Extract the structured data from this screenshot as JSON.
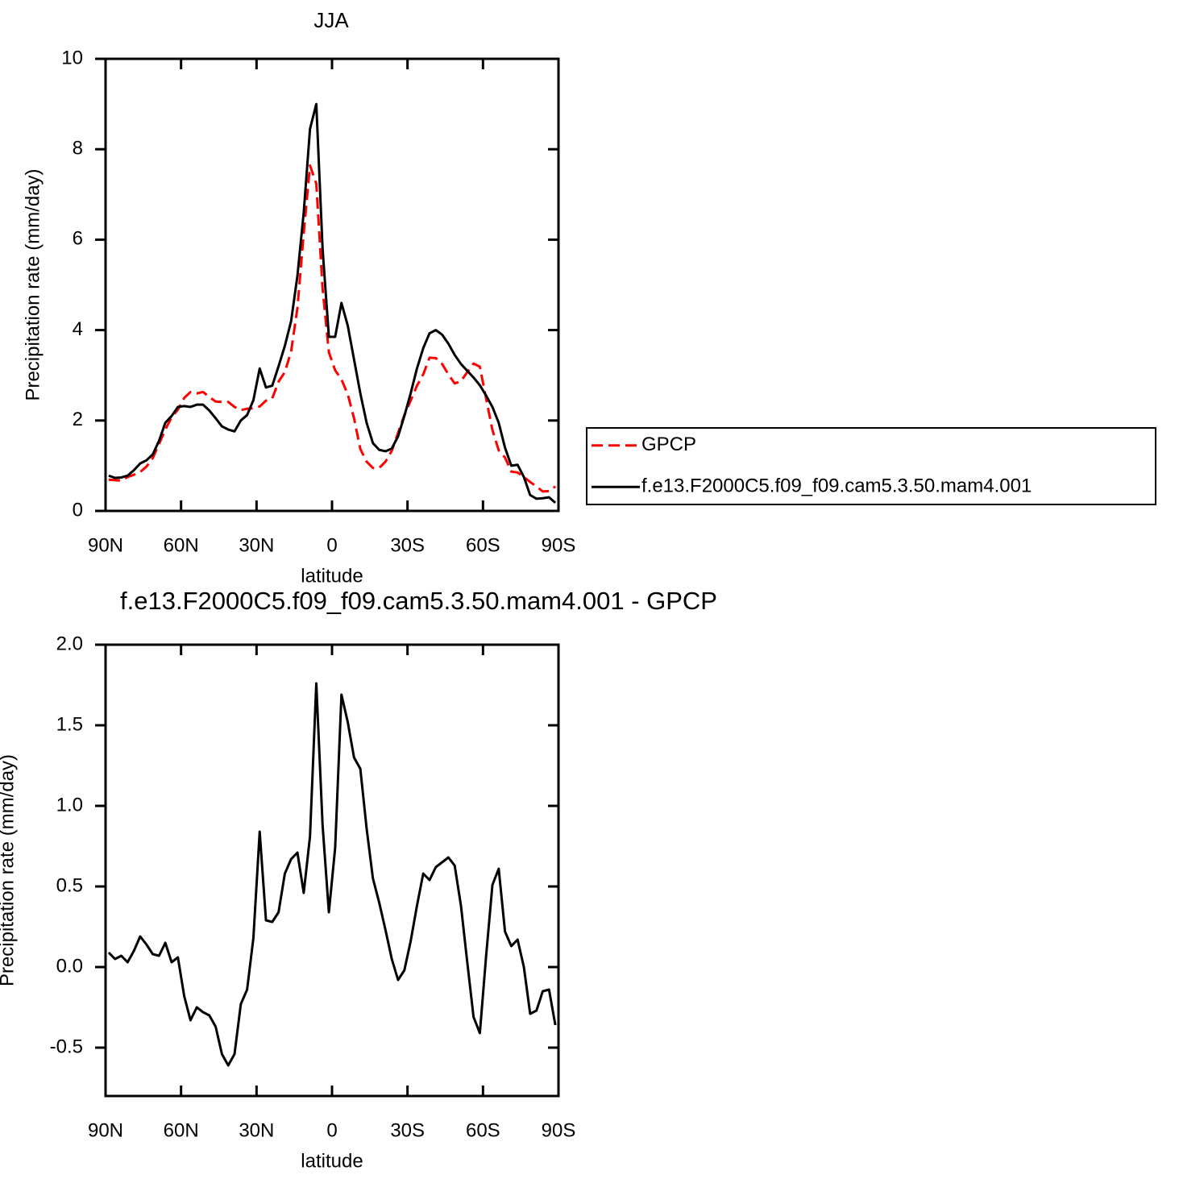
{
  "chart_data": [
    {
      "type": "line",
      "title": "JJA",
      "xlabel": "latitude",
      "ylabel": "Precipitation rate (mm/day)",
      "x": [
        88.75,
        86.25,
        83.75,
        81.25,
        78.75,
        76.25,
        73.75,
        71.25,
        68.75,
        66.25,
        63.75,
        61.25,
        58.75,
        56.25,
        53.75,
        51.25,
        48.75,
        46.25,
        43.75,
        41.25,
        38.75,
        36.25,
        33.75,
        31.25,
        28.75,
        26.25,
        23.75,
        21.25,
        18.75,
        16.25,
        13.75,
        11.25,
        8.75,
        6.25,
        3.75,
        1.25,
        -1.25,
        -3.75,
        -6.25,
        -8.75,
        -11.25,
        -13.75,
        -16.25,
        -18.75,
        -21.25,
        -23.75,
        -26.25,
        -28.75,
        -31.25,
        -33.75,
        -36.25,
        -38.75,
        -41.25,
        -43.75,
        -46.25,
        -48.75,
        -51.25,
        -53.75,
        -56.25,
        -58.75,
        -61.25,
        -63.75,
        -66.25,
        -68.75,
        -71.25,
        -73.75,
        -76.25,
        -78.75,
        -81.25,
        -83.75,
        -86.25,
        -88.75
      ],
      "series": [
        {
          "name": "GPCP",
          "color": "#ff0000",
          "style": "dashed",
          "values": [
            0.69,
            0.68,
            0.67,
            0.75,
            0.8,
            0.86,
            0.98,
            1.17,
            1.48,
            1.8,
            2.07,
            2.24,
            2.5,
            2.63,
            2.6,
            2.63,
            2.52,
            2.42,
            2.41,
            2.41,
            2.3,
            2.23,
            2.26,
            2.27,
            2.31,
            2.44,
            2.49,
            2.86,
            3.07,
            3.53,
            4.49,
            6.14,
            7.64,
            7.24,
            4.92,
            3.51,
            3.11,
            2.91,
            2.58,
            2.05,
            1.37,
            1.09,
            0.95,
            0.95,
            1.09,
            1.33,
            1.73,
            2.12,
            2.44,
            2.77,
            3.02,
            3.39,
            3.38,
            3.25,
            3.02,
            2.82,
            2.87,
            3.07,
            3.26,
            3.19,
            2.48,
            1.79,
            1.34,
            1.18,
            0.87,
            0.85,
            0.75,
            0.64,
            0.54,
            0.43,
            0.44,
            0.54
          ]
        },
        {
          "name": "f.e13.F2000C5.f09_f09.cam5.3.50.mam4.001",
          "color": "#000000",
          "style": "solid",
          "values": [
            0.78,
            0.73,
            0.74,
            0.78,
            0.9,
            1.05,
            1.12,
            1.25,
            1.55,
            1.95,
            2.1,
            2.3,
            2.32,
            2.3,
            2.35,
            2.35,
            2.22,
            2.05,
            1.87,
            1.8,
            1.76,
            2.0,
            2.12,
            2.45,
            3.15,
            2.73,
            2.77,
            3.2,
            3.65,
            4.2,
            5.2,
            6.6,
            8.45,
            9.0,
            5.8,
            3.85,
            3.85,
            4.6,
            4.1,
            3.35,
            2.6,
            1.95,
            1.5,
            1.35,
            1.32,
            1.38,
            1.65,
            2.1,
            2.6,
            3.15,
            3.6,
            3.93,
            4.0,
            3.9,
            3.7,
            3.45,
            3.25,
            3.1,
            2.95,
            2.78,
            2.55,
            2.3,
            1.95,
            1.4,
            1.0,
            1.02,
            0.75,
            0.35,
            0.27,
            0.28,
            0.3,
            0.18
          ]
        }
      ],
      "xlim": [
        90,
        -90
      ],
      "xticks": [
        {
          "value": 90,
          "label": "90N"
        },
        {
          "value": 60,
          "label": "60N"
        },
        {
          "value": 30,
          "label": "30N"
        },
        0,
        {
          "value": -30,
          "label": "30S"
        },
        {
          "value": -60,
          "label": "60S"
        },
        {
          "value": -90,
          "label": "90S"
        }
      ],
      "ylim": [
        0,
        10
      ],
      "yticks": [
        0,
        2,
        4,
        6,
        8,
        10
      ],
      "legend": "outside right"
    },
    {
      "type": "line",
      "title": "f.e13.F2000C5.f09_f09.cam5.3.50.mam4.001 - GPCP",
      "xlabel": "latitude",
      "ylabel": "Precipitation rate (mm/day)",
      "x": [
        88.75,
        86.25,
        83.75,
        81.25,
        78.75,
        76.25,
        73.75,
        71.25,
        68.75,
        66.25,
        63.75,
        61.25,
        58.75,
        56.25,
        53.75,
        51.25,
        48.75,
        46.25,
        43.75,
        41.25,
        38.75,
        36.25,
        33.75,
        31.25,
        28.75,
        26.25,
        23.75,
        21.25,
        18.75,
        16.25,
        13.75,
        11.25,
        8.75,
        6.25,
        3.75,
        1.25,
        -1.25,
        -3.75,
        -6.25,
        -8.75,
        -11.25,
        -13.75,
        -16.25,
        -18.75,
        -21.25,
        -23.75,
        -26.25,
        -28.75,
        -31.25,
        -33.75,
        -36.25,
        -38.75,
        -41.25,
        -43.75,
        -46.25,
        -48.75,
        -51.25,
        -53.75,
        -56.25,
        -58.75,
        -61.25,
        -63.75,
        -66.25,
        -68.75,
        -71.25,
        -73.75,
        -76.25,
        -78.75,
        -81.25,
        -83.75,
        -86.25,
        -88.75
      ],
      "series": [
        {
          "color": "#000000",
          "style": "solid",
          "values": [
            0.09,
            0.05,
            0.07,
            0.03,
            0.1,
            0.19,
            0.14,
            0.08,
            0.07,
            0.15,
            0.03,
            0.06,
            -0.18,
            -0.33,
            -0.25,
            -0.28,
            -0.3,
            -0.37,
            -0.54,
            -0.61,
            -0.54,
            -0.23,
            -0.14,
            0.18,
            0.84,
            0.29,
            0.28,
            0.34,
            0.58,
            0.67,
            0.71,
            0.46,
            0.81,
            1.76,
            0.88,
            0.34,
            0.74,
            1.69,
            1.52,
            1.3,
            1.23,
            0.86,
            0.55,
            0.4,
            0.23,
            0.05,
            -0.08,
            -0.02,
            0.16,
            0.38,
            0.58,
            0.54,
            0.62,
            0.65,
            0.68,
            0.63,
            0.38,
            0.03,
            -0.31,
            -0.41,
            0.07,
            0.51,
            0.61,
            0.22,
            0.13,
            0.17,
            0.0,
            -0.29,
            -0.27,
            -0.15,
            -0.14,
            -0.36
          ]
        }
      ],
      "xlim": [
        90,
        -90
      ],
      "xticks": [
        {
          "value": 90,
          "label": "90N"
        },
        {
          "value": 60,
          "label": "60N"
        },
        {
          "value": 30,
          "label": "30N"
        },
        0,
        {
          "value": -30,
          "label": "30S"
        },
        {
          "value": -60,
          "label": "60S"
        },
        {
          "value": -90,
          "label": "90S"
        }
      ],
      "ylim": [
        -0.8,
        2.0
      ],
      "yticks": [
        -0.5,
        {
          "value": 0,
          "label": "0.0"
        },
        0.5,
        {
          "value": 1,
          "label": "1.0"
        },
        1.5,
        {
          "value": 2,
          "label": "2.0"
        }
      ]
    }
  ]
}
